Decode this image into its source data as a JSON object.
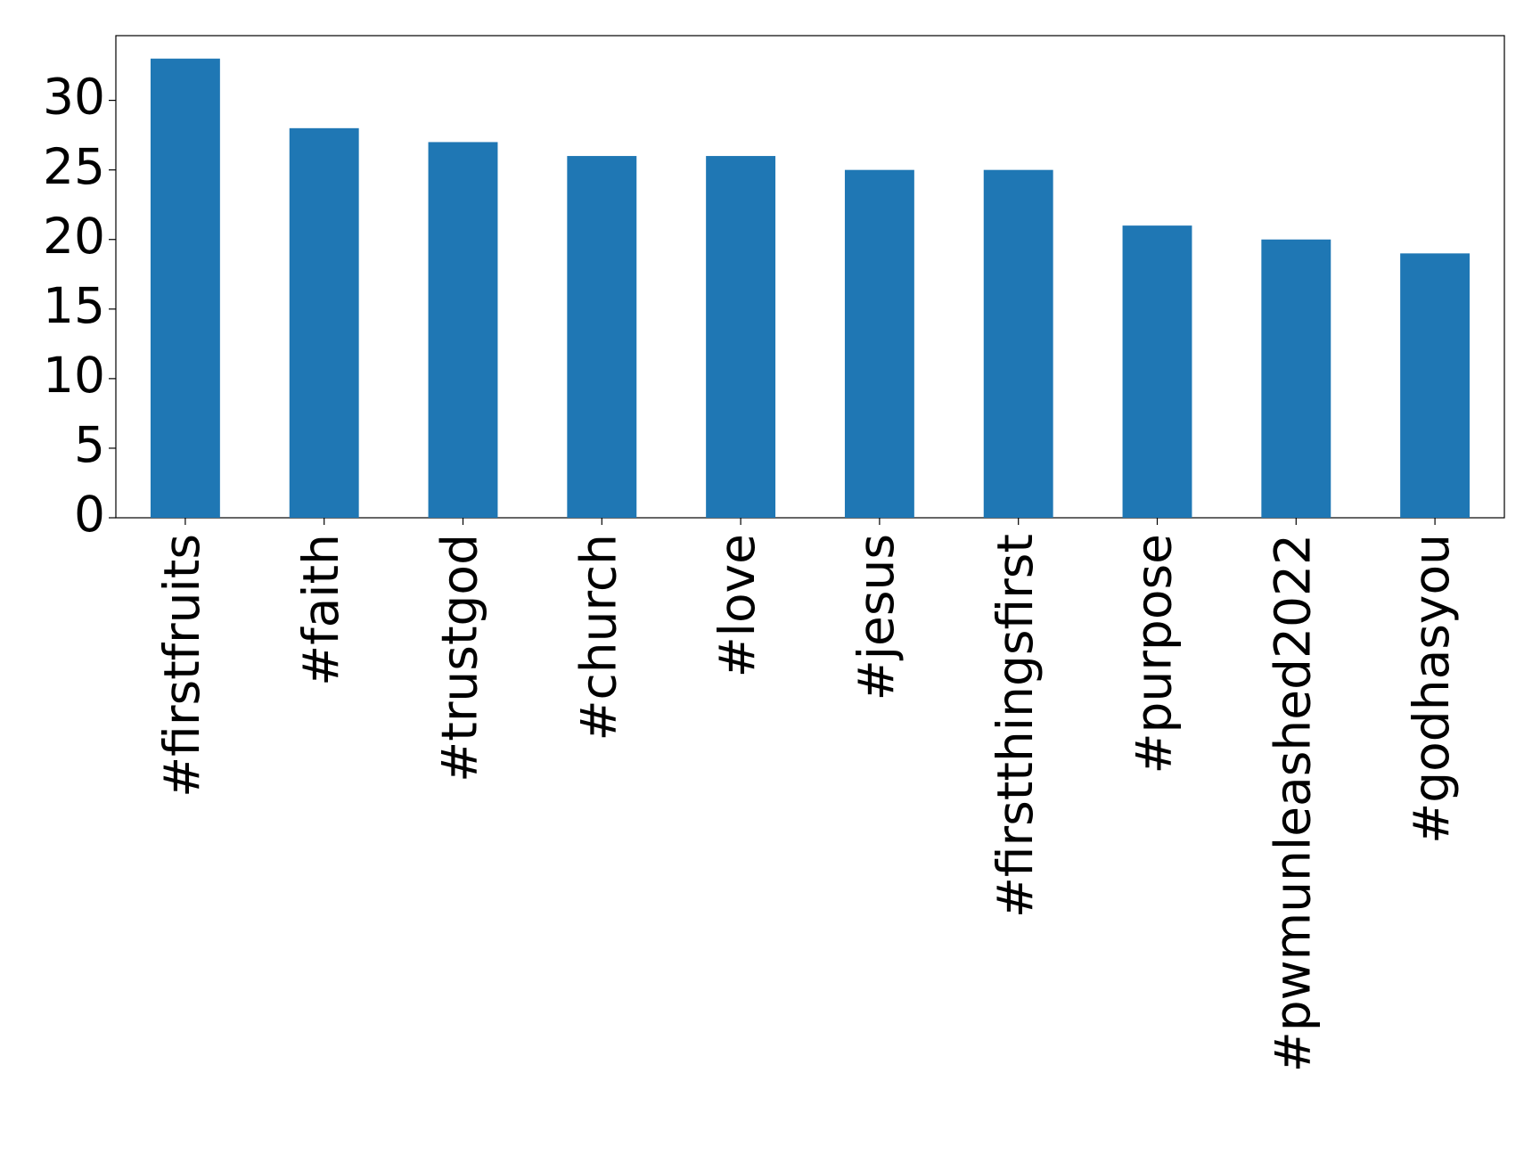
{
  "chart_data": {
    "type": "bar",
    "categories": [
      "#firstfruits",
      "#faith",
      "#trustgod",
      "#church",
      "#love",
      "#jesus",
      "#firstthingsfirst",
      "#purpose",
      "#pwmunleashed2022",
      "#godhasyou"
    ],
    "values": [
      33,
      28,
      27,
      26,
      26,
      25,
      25,
      21,
      20,
      19
    ],
    "color": "#1f77b4",
    "ylim": [
      0,
      34.65
    ],
    "yticks": [
      0,
      5,
      10,
      15,
      20,
      25,
      30
    ],
    "grid": false
  }
}
